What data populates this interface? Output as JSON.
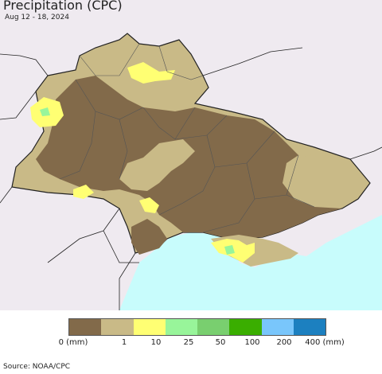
{
  "title": "Precipitation (CPC)",
  "subtitle": "Aug 12 - 18, 2024",
  "legend": {
    "colors": [
      "#826a4a",
      "#c9ba87",
      "#ffff73",
      "#98f59a",
      "#79cf6f",
      "#3aae00",
      "#79c6fb",
      "#1c80c0"
    ],
    "labels": [
      "0 (mm)",
      "1",
      "10",
      "25",
      "50",
      "100",
      "200",
      "400 (mm)"
    ]
  },
  "source": "Source: NOAA/CPC",
  "map_colors": {
    "background_land": "#efeaf0",
    "sea": "#c8fcfc",
    "dry": "#826a4a",
    "light": "#c9ba87",
    "moderate": "#ffff73",
    "wet": "#98f59a"
  }
}
